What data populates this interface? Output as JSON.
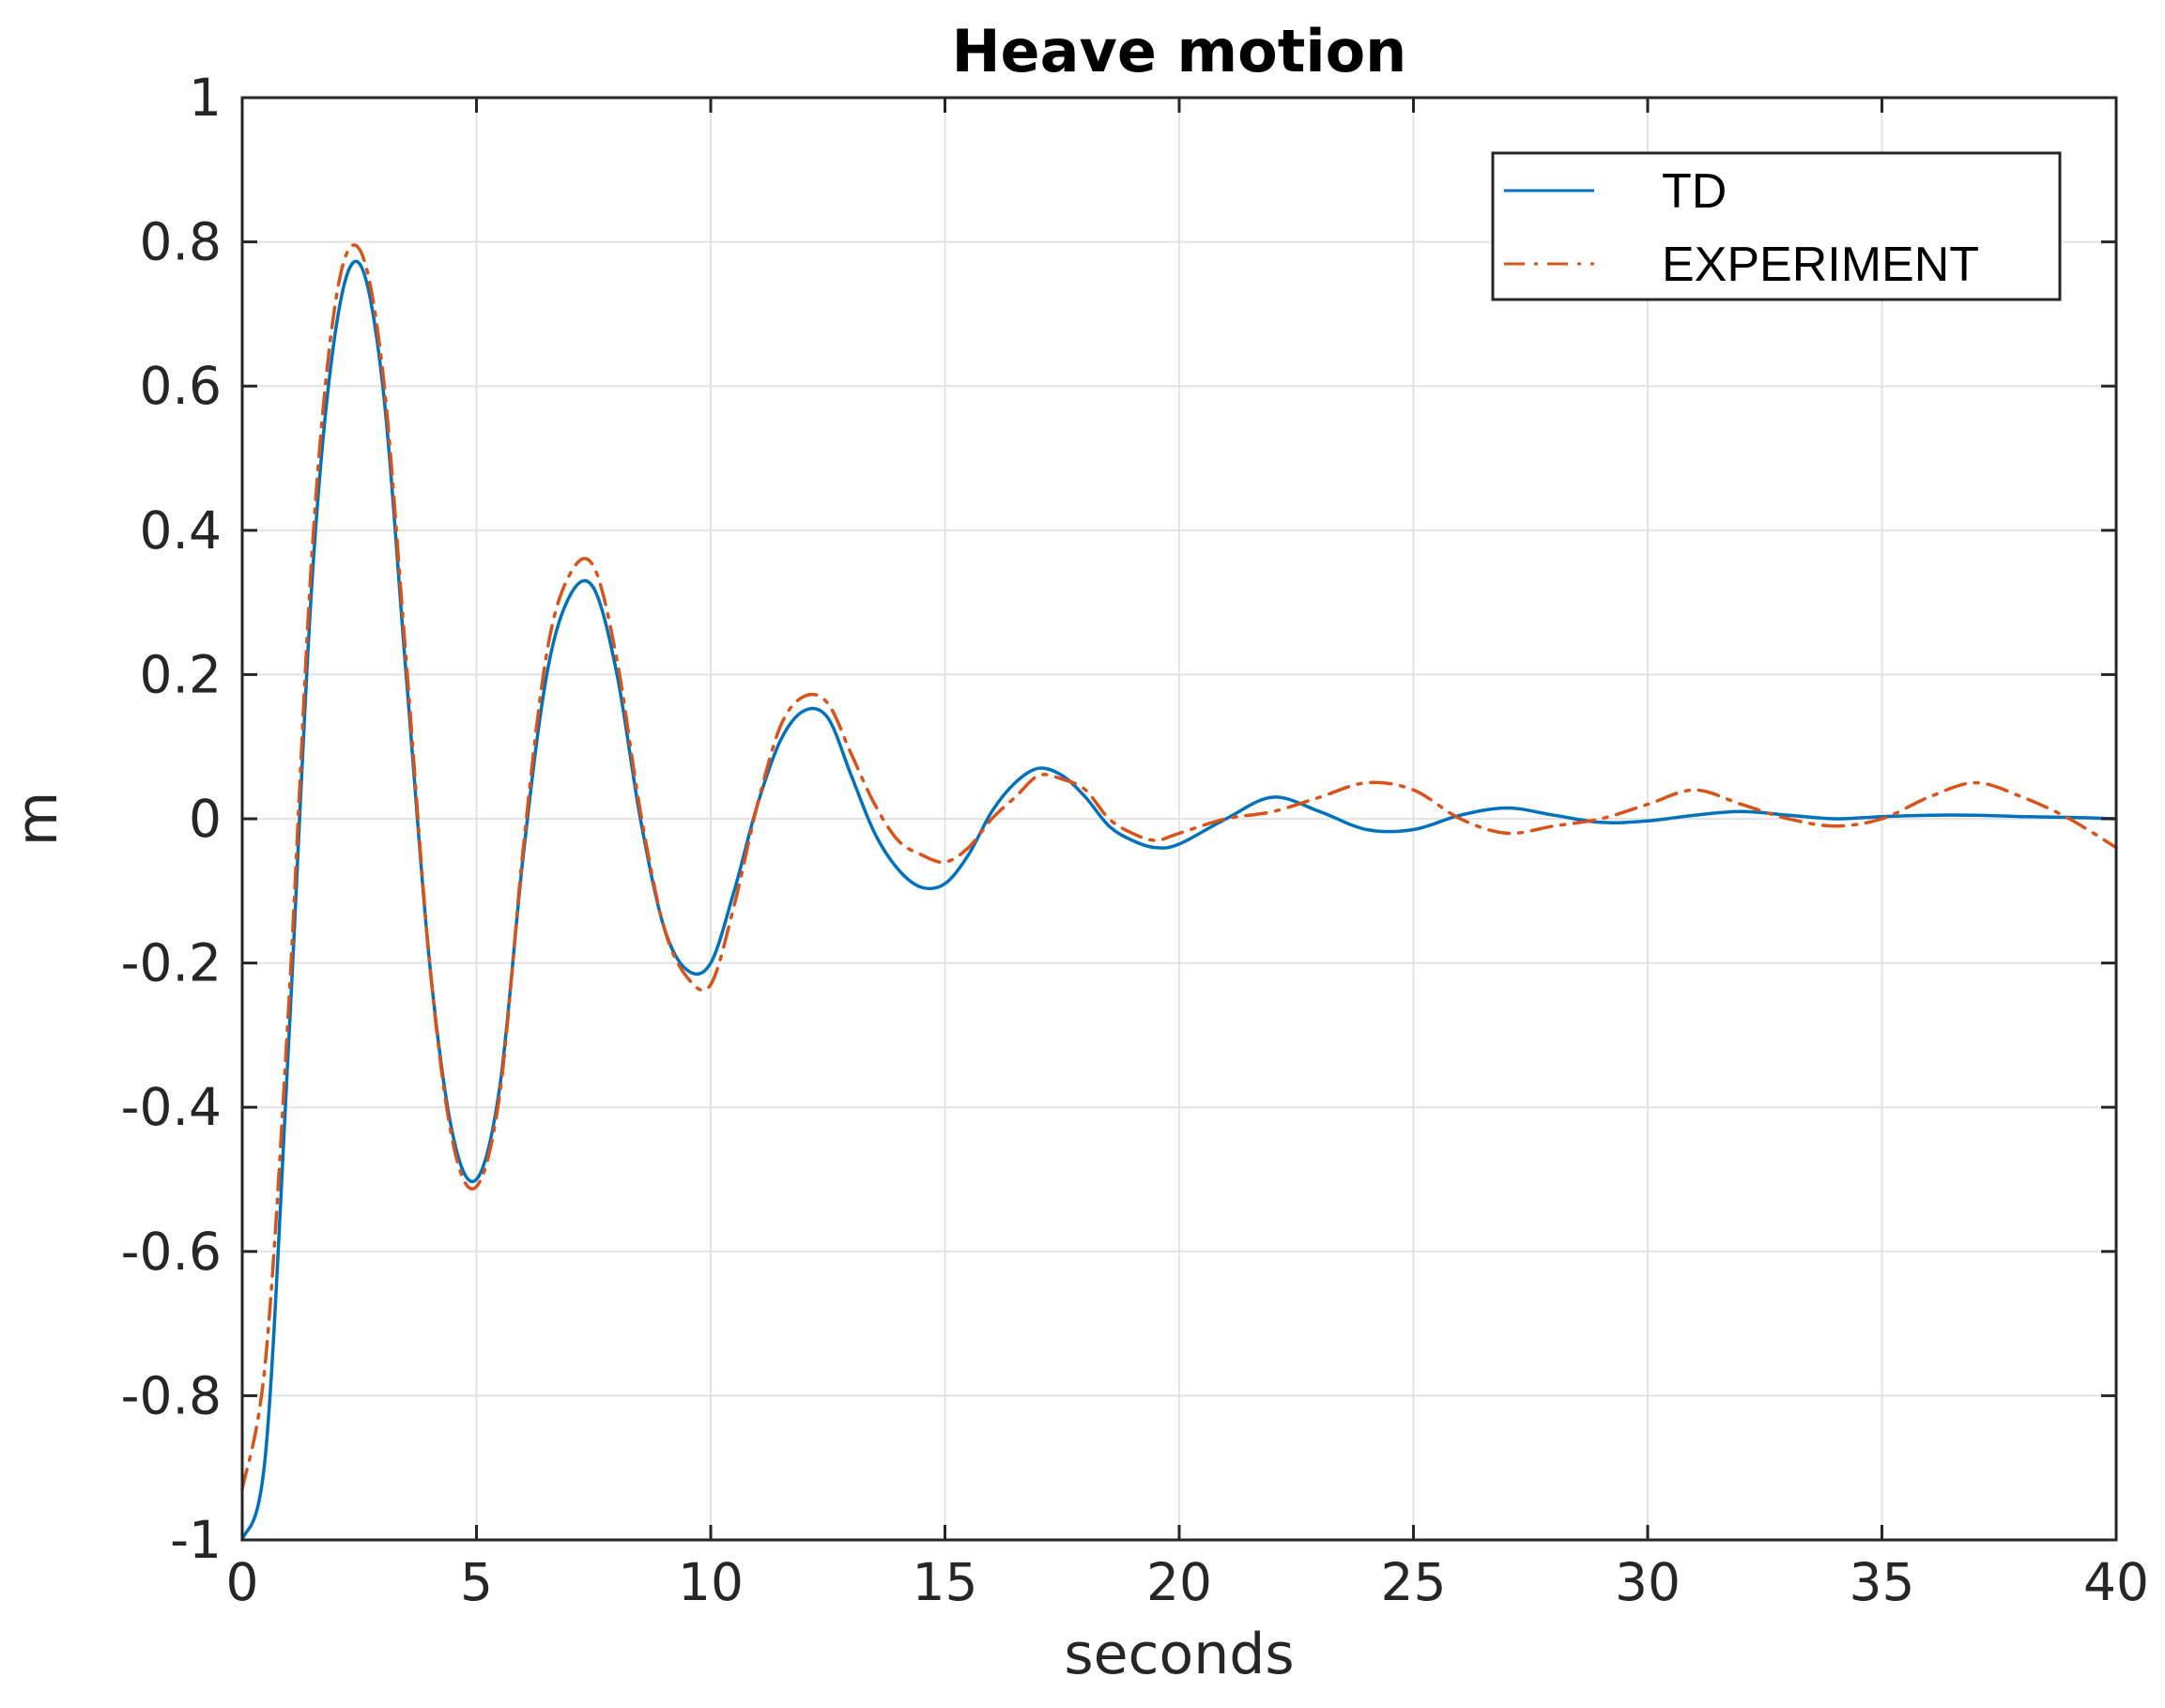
{
  "chart_data": {
    "type": "line",
    "title": "Heave motion",
    "xlabel": "seconds",
    "ylabel": "m",
    "xlim": [
      0,
      40
    ],
    "ylim": [
      -1,
      1
    ],
    "xticks": [
      0,
      5,
      10,
      15,
      20,
      25,
      30,
      35,
      40
    ],
    "xtick_labels": [
      "0",
      "5",
      "10",
      "15",
      "20",
      "25",
      "30",
      "35",
      "40"
    ],
    "yticks": [
      1,
      0.8,
      0.6,
      0.4,
      0.2,
      0,
      -0.2,
      -0.4,
      -0.6,
      -0.8,
      -1
    ],
    "ytick_labels": [
      "1",
      "0.8",
      "0.6",
      "0.4",
      "0.2",
      "0",
      "-0.2",
      "-0.4",
      "-0.6",
      "-0.8",
      "-1"
    ],
    "grid": true,
    "legend_position": "top-right",
    "series": [
      {
        "name": "TD",
        "color": "#0072BD",
        "style": "solid",
        "x": [
          0,
          0.5,
          1,
          1.5,
          2,
          2.5,
          3,
          3.5,
          4,
          4.5,
          5,
          5.5,
          6,
          6.5,
          7,
          7.5,
          8,
          8.5,
          9,
          9.5,
          10,
          10.5,
          11,
          11.5,
          12,
          12.5,
          13,
          13.5,
          14,
          14.5,
          15,
          15.5,
          16,
          16.5,
          17,
          17.5,
          18,
          18.5,
          19,
          19.5,
          20,
          21,
          22,
          23,
          24,
          25,
          26,
          27,
          28,
          29,
          30,
          31,
          32,
          33,
          34,
          35,
          36,
          37,
          38,
          39,
          40
        ],
        "y": [
          -1.0,
          -0.88,
          -0.3,
          0.34,
          0.68,
          0.77,
          0.6,
          0.2,
          -0.2,
          -0.44,
          -0.5,
          -0.37,
          -0.05,
          0.2,
          0.31,
          0.32,
          0.2,
          0.0,
          -0.15,
          -0.21,
          -0.2,
          -0.1,
          0.02,
          0.11,
          0.15,
          0.14,
          0.06,
          -0.02,
          -0.07,
          -0.095,
          -0.09,
          -0.05,
          0.01,
          0.05,
          0.07,
          0.06,
          0.03,
          -0.01,
          -0.03,
          -0.04,
          -0.035,
          0.0,
          0.03,
          0.01,
          -0.015,
          -0.015,
          0.005,
          0.015,
          0.005,
          -0.005,
          -0.003,
          0.005,
          0.01,
          0.005,
          0.0,
          0.003,
          0.005,
          0.005,
          0.003,
          0.002,
          0.0
        ]
      },
      {
        "name": "EXPERIMENT",
        "color": "#D95319",
        "style": "dash-dot",
        "x": [
          0,
          0.5,
          1,
          1.5,
          2,
          2.5,
          3,
          3.5,
          4,
          4.5,
          5,
          5.5,
          6,
          6.5,
          7,
          7.5,
          8,
          8.5,
          9,
          9.5,
          10,
          10.5,
          11,
          11.5,
          12,
          12.5,
          13,
          13.5,
          14,
          14.5,
          15,
          15.5,
          16,
          16.5,
          17,
          17.5,
          18,
          18.5,
          19,
          19.5,
          20,
          21,
          22,
          23,
          24,
          25,
          26,
          27,
          28,
          29,
          30,
          31,
          32,
          33,
          34,
          35,
          36,
          37,
          38,
          39,
          40
        ],
        "y": [
          -0.93,
          -0.75,
          -0.25,
          0.38,
          0.72,
          0.79,
          0.62,
          0.22,
          -0.2,
          -0.45,
          -0.51,
          -0.38,
          -0.04,
          0.23,
          0.34,
          0.35,
          0.22,
          0.01,
          -0.15,
          -0.22,
          -0.23,
          -0.12,
          0.02,
          0.13,
          0.17,
          0.16,
          0.09,
          0.02,
          -0.03,
          -0.05,
          -0.06,
          -0.04,
          0.0,
          0.03,
          0.06,
          0.055,
          0.04,
          0.0,
          -0.02,
          -0.03,
          -0.02,
          0.0,
          0.01,
          0.03,
          0.05,
          0.04,
          0.0,
          -0.02,
          -0.01,
          0.0,
          0.02,
          0.04,
          0.02,
          0.0,
          -0.01,
          0.0,
          0.03,
          0.05,
          0.03,
          0.0,
          -0.04
        ]
      }
    ]
  }
}
